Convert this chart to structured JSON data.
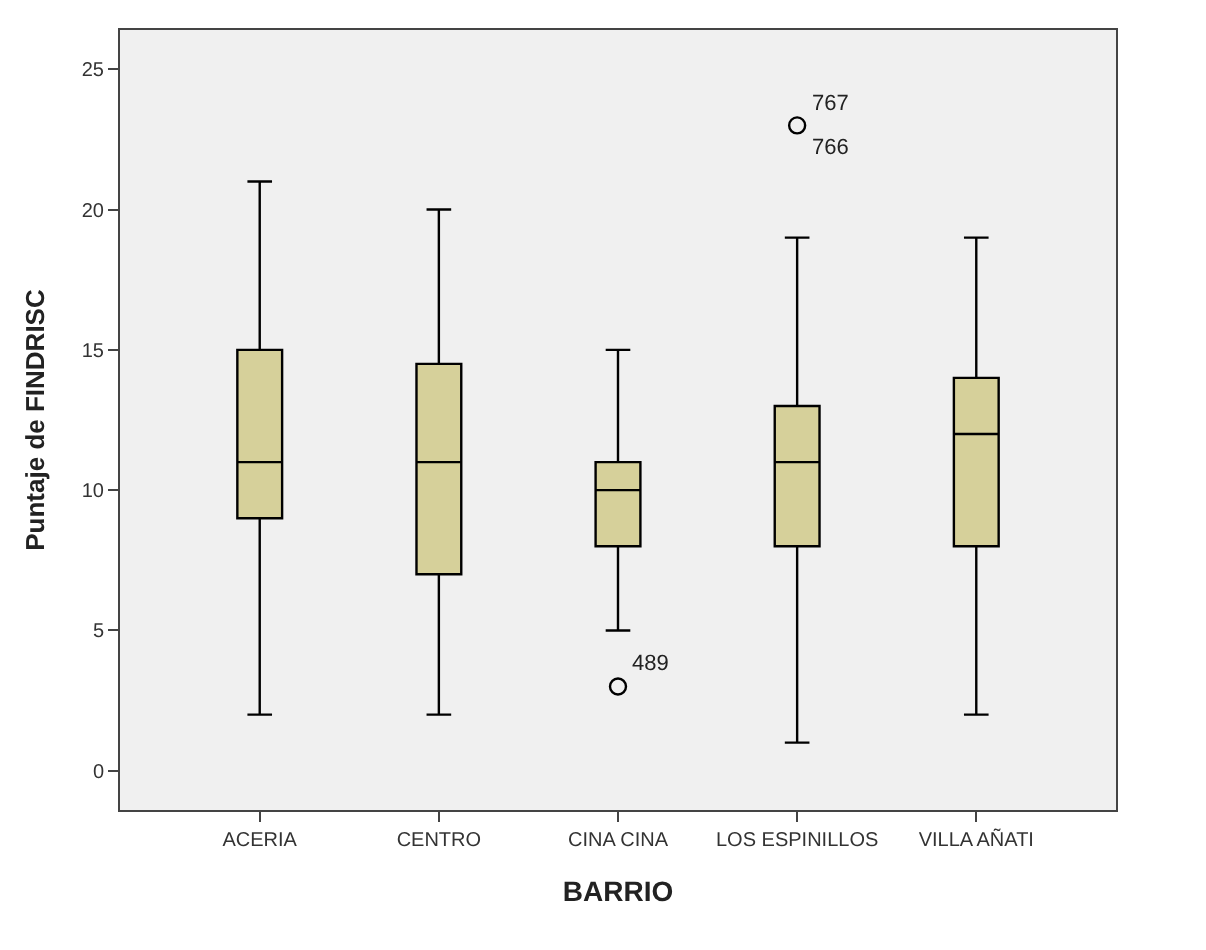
{
  "chart_data": {
    "type": "box",
    "xlabel": "BARRIO",
    "ylabel": "Puntaje de FINDRISC",
    "categories": [
      "ACERIA",
      "CENTRO",
      "CINA CINA",
      "LOS ESPINILLOS",
      "VILLA AÑATI"
    ],
    "color": "#d6d09a",
    "boxes": [
      {
        "low": 2,
        "q1": 9,
        "median": 11,
        "q3": 15,
        "high": 21
      },
      {
        "low": 2,
        "q1": 7,
        "median": 11,
        "q3": 14.5,
        "high": 20
      },
      {
        "low": 5,
        "q1": 8,
        "median": 10,
        "q3": 11,
        "high": 15,
        "outliers": [
          3
        ]
      },
      {
        "low": 1,
        "q1": 8,
        "median": 11,
        "q3": 13,
        "high": 19,
        "outliers": [
          23
        ]
      },
      {
        "low": 2,
        "q1": 8,
        "median": 12,
        "q3": 14,
        "high": 19
      }
    ],
    "annotations": [
      "489",
      "767",
      "766"
    ],
    "ylim": [
      -1.4,
      26.4
    ],
    "yticks": [
      0,
      5,
      10,
      15,
      20,
      25
    ],
    "grid": false
  }
}
